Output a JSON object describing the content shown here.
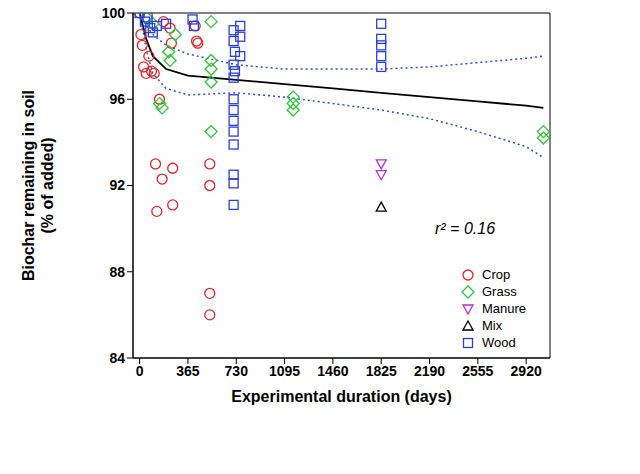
{
  "chart_data": {
    "type": "scatter",
    "x_label": "Experimental duration (days)",
    "y_label": "Biochar remaining in soil\n(% of added)",
    "annotation": "r² = 0.16",
    "xlim": [
      -50,
      3100
    ],
    "xticks": [
      0,
      365,
      730,
      1095,
      1460,
      1825,
      2190,
      2555,
      2920
    ],
    "ylim": [
      84,
      100
    ],
    "yticks": [
      84,
      88,
      92,
      96,
      100
    ],
    "legend": "lower right",
    "series": [
      {
        "name": "Crop",
        "color": "#e0242a",
        "marker": "circle",
        "x": [
          0,
          10,
          20,
          30,
          50,
          70,
          90,
          110,
          150,
          120,
          130,
          170,
          250,
          250,
          180,
          230,
          240,
          420,
          430,
          440,
          530,
          530,
          530,
          530
        ],
        "values": [
          100,
          99,
          98.5,
          97.5,
          97.2,
          98,
          97.3,
          97.2,
          96,
          93,
          90.8,
          92.3,
          92.8,
          91.1,
          99.6,
          99.3,
          98.6,
          99.4,
          98.7,
          98.6,
          93,
          92,
          87,
          86
        ]
      },
      {
        "name": "Grass",
        "color": "#2fc43a",
        "marker": "diamond",
        "x": [
          50,
          100,
          150,
          170,
          220,
          230,
          270,
          540,
          540,
          540,
          540,
          540,
          1160,
          1160,
          1160,
          3050,
          3050
        ],
        "values": [
          99.8,
          99.5,
          95.8,
          95.6,
          98.2,
          97.8,
          99,
          99.6,
          97.8,
          97.4,
          96.8,
          94.5,
          96.1,
          95.8,
          95.5,
          94.5,
          94.2
        ]
      },
      {
        "name": "Manure",
        "color": "#b52fc9",
        "marker": "triangle-down",
        "x": [
          1825,
          1825
        ],
        "values": [
          93,
          92.5
        ]
      },
      {
        "name": "Mix",
        "color": "#000000",
        "marker": "triangle",
        "x": [
          1825
        ],
        "values": [
          91
        ]
      },
      {
        "name": "Wood",
        "color": "#2b3fd9",
        "marker": "square",
        "x": [
          0,
          40,
          60,
          80,
          100,
          130,
          200,
          400,
          410,
          710,
          710,
          720,
          710,
          720,
          760,
          760,
          760,
          710,
          710,
          710,
          710,
          710,
          710,
          710,
          710,
          710,
          1825,
          1825,
          1825,
          1825,
          1825
        ],
        "values": [
          100,
          99.6,
          99.8,
          99.3,
          99.1,
          99.4,
          99.5,
          99.7,
          99.4,
          99.2,
          98.7,
          98.2,
          97.6,
          97.3,
          99.4,
          98.9,
          98,
          97,
          96,
          95.5,
          95,
          94.5,
          93.9,
          92.5,
          92.1,
          91.1,
          99.5,
          98.8,
          98.5,
          98,
          97.5
        ]
      }
    ],
    "lines": [
      {
        "type": "line",
        "color": "#000000",
        "line_style": "solid",
        "x": [
          0,
          50,
          100,
          200,
          365,
          730,
          1095,
          1460,
          1825,
          2190,
          2555,
          2920,
          3050
        ],
        "values": [
          100,
          98.8,
          98.0,
          97.4,
          97.1,
          96.9,
          96.7,
          96.5,
          96.3,
          96.1,
          95.9,
          95.7,
          95.6
        ]
      },
      {
        "type": "line",
        "color": "#3050d0",
        "line_style": "dotted",
        "x": [
          0,
          50,
          100,
          200,
          365,
          730,
          1095,
          1460,
          1825,
          2190,
          2555,
          2920,
          3050
        ],
        "values": [
          100,
          99.4,
          99.0,
          98.5,
          98.1,
          97.6,
          97.4,
          97.4,
          97.4,
          97.5,
          97.7,
          97.9,
          98.0
        ]
      },
      {
        "type": "line",
        "color": "#3050d0",
        "line_style": "dotted",
        "x": [
          0,
          50,
          100,
          200,
          365,
          730,
          1095,
          1460,
          1825,
          2190,
          2555,
          2920,
          3050
        ],
        "values": [
          100,
          98.3,
          97.2,
          96.5,
          96.2,
          96.3,
          96.1,
          95.8,
          95.5,
          95.1,
          94.5,
          93.8,
          93.3
        ]
      }
    ]
  }
}
